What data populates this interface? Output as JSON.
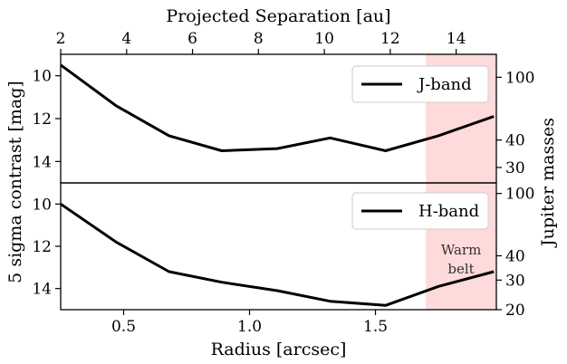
{
  "chart_data": [
    {
      "type": "line",
      "panel": "top",
      "legend_position": "top-right",
      "series": [
        {
          "name": "J-band",
          "x": [
            0.25,
            0.47,
            0.68,
            0.89,
            1.11,
            1.32,
            1.54,
            1.75,
            1.97
          ],
          "y": [
            9.5,
            11.4,
            12.8,
            13.5,
            13.4,
            12.9,
            13.5,
            12.8,
            11.9
          ]
        }
      ],
      "x_top_label": "Projected Separation [au]",
      "x_top_ticks": [
        2,
        4,
        6,
        8,
        10,
        12,
        14
      ],
      "x_top_lim": [
        2,
        15.22
      ],
      "ylim": [
        15,
        9
      ],
      "y_ticks": [
        10,
        12,
        14
      ],
      "right_ticks": [
        100,
        40,
        30
      ],
      "right_tick_mag": [
        10.07,
        13.0,
        14.28
      ]
    },
    {
      "type": "line",
      "panel": "bottom",
      "legend_position": "top-right",
      "series": [
        {
          "name": "H-band",
          "x": [
            0.25,
            0.47,
            0.68,
            0.89,
            1.11,
            1.32,
            1.54,
            1.75,
            1.97
          ],
          "y": [
            10.0,
            11.8,
            13.2,
            13.7,
            14.1,
            14.6,
            14.8,
            13.9,
            13.2
          ]
        }
      ],
      "xlabel": "Radius [arcsec]",
      "x_ticks": [
        0.5,
        1.0,
        1.5
      ],
      "x_tick_labels": [
        "0.5",
        "1.0",
        "1.5"
      ],
      "xlim": [
        0.25,
        1.98
      ],
      "ylim": [
        15,
        9
      ],
      "y_ticks": [
        10,
        12,
        14
      ],
      "right_ticks": [
        100,
        40,
        30,
        20
      ],
      "right_tick_mag": [
        9.5,
        12.45,
        13.6,
        15.0
      ],
      "shaded_band": {
        "x": [
          1.7,
          1.98
        ],
        "color": "#ffdada",
        "label": [
          "Warm",
          "belt"
        ]
      }
    }
  ],
  "shared": {
    "ylabel": "5 sigma contrast [mag]",
    "right_label": "Jupiter masses"
  },
  "colors": {
    "line": "#000000",
    "band": "#ffdada"
  }
}
